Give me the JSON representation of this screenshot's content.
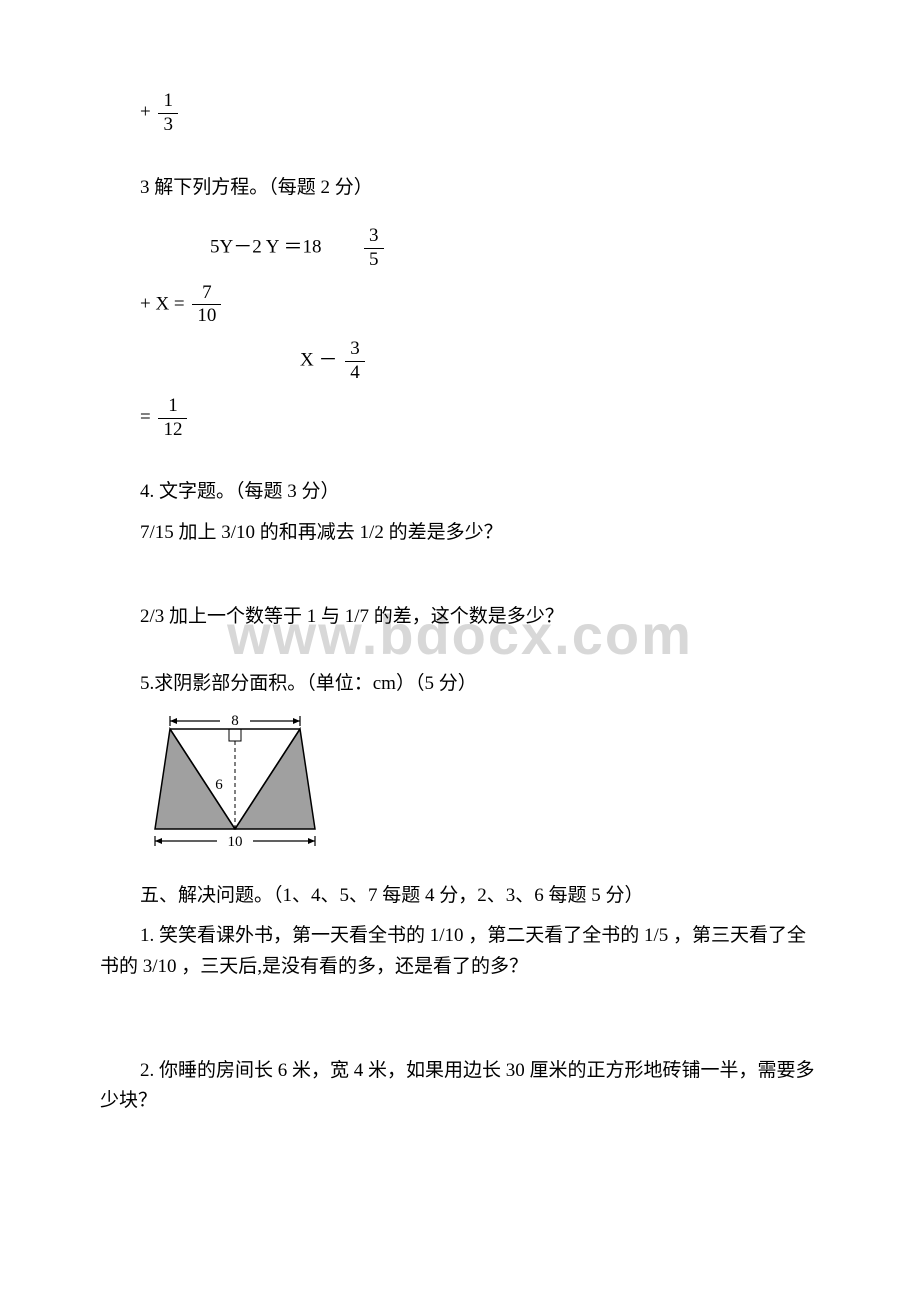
{
  "watermark": "www.bdocx.com",
  "top_fraction": {
    "prefix": "+",
    "num": "1",
    "den": "3"
  },
  "q3": {
    "title": "3 解下列方程。（每题 2 分）",
    "eq1_left": "5Y－2 Y ＝18",
    "eq1_frac": {
      "num": "3",
      "den": "5"
    },
    "eq2_prefix": "+ X =",
    "eq2_frac": {
      "num": "7",
      "den": "10"
    },
    "eq3_left": "X －",
    "eq3_frac": {
      "num": "3",
      "den": "4"
    },
    "eq4_prefix": "=",
    "eq4_frac": {
      "num": "1",
      "den": "12"
    }
  },
  "q4": {
    "title": "4. 文字题。（每题 3 分）",
    "item1": "7/15 加上 3/10 的和再减去 1/2 的差是多少？",
    "item2": "2/3 加上一个数等于 1 与 1/7 的差，这个数是多少？"
  },
  "q5": {
    "title": "5.求阴影部分面积。（单位：cm）（5 分）",
    "diagram": {
      "top_label": "8",
      "height_label": "6",
      "bottom_label": "10",
      "fill_color": "#a0a0a0",
      "stroke_color": "#000000"
    }
  },
  "section5": {
    "title": "五、解决问题。（1、4、5、7 每题 4 分，2、3、6 每题 5 分）",
    "p1": "1. 笑笑看课外书，第一天看全书的 1/10  ，第二天看了全书的 1/5  ，第三天看了全书的 3/10 ，三天后,是没有看的多，还是看了的多？",
    "p2": "2. 你睡的房间长 6 米，宽 4 米，如果用边长 30 厘米的正方形地砖铺一半，需要多少块？"
  }
}
